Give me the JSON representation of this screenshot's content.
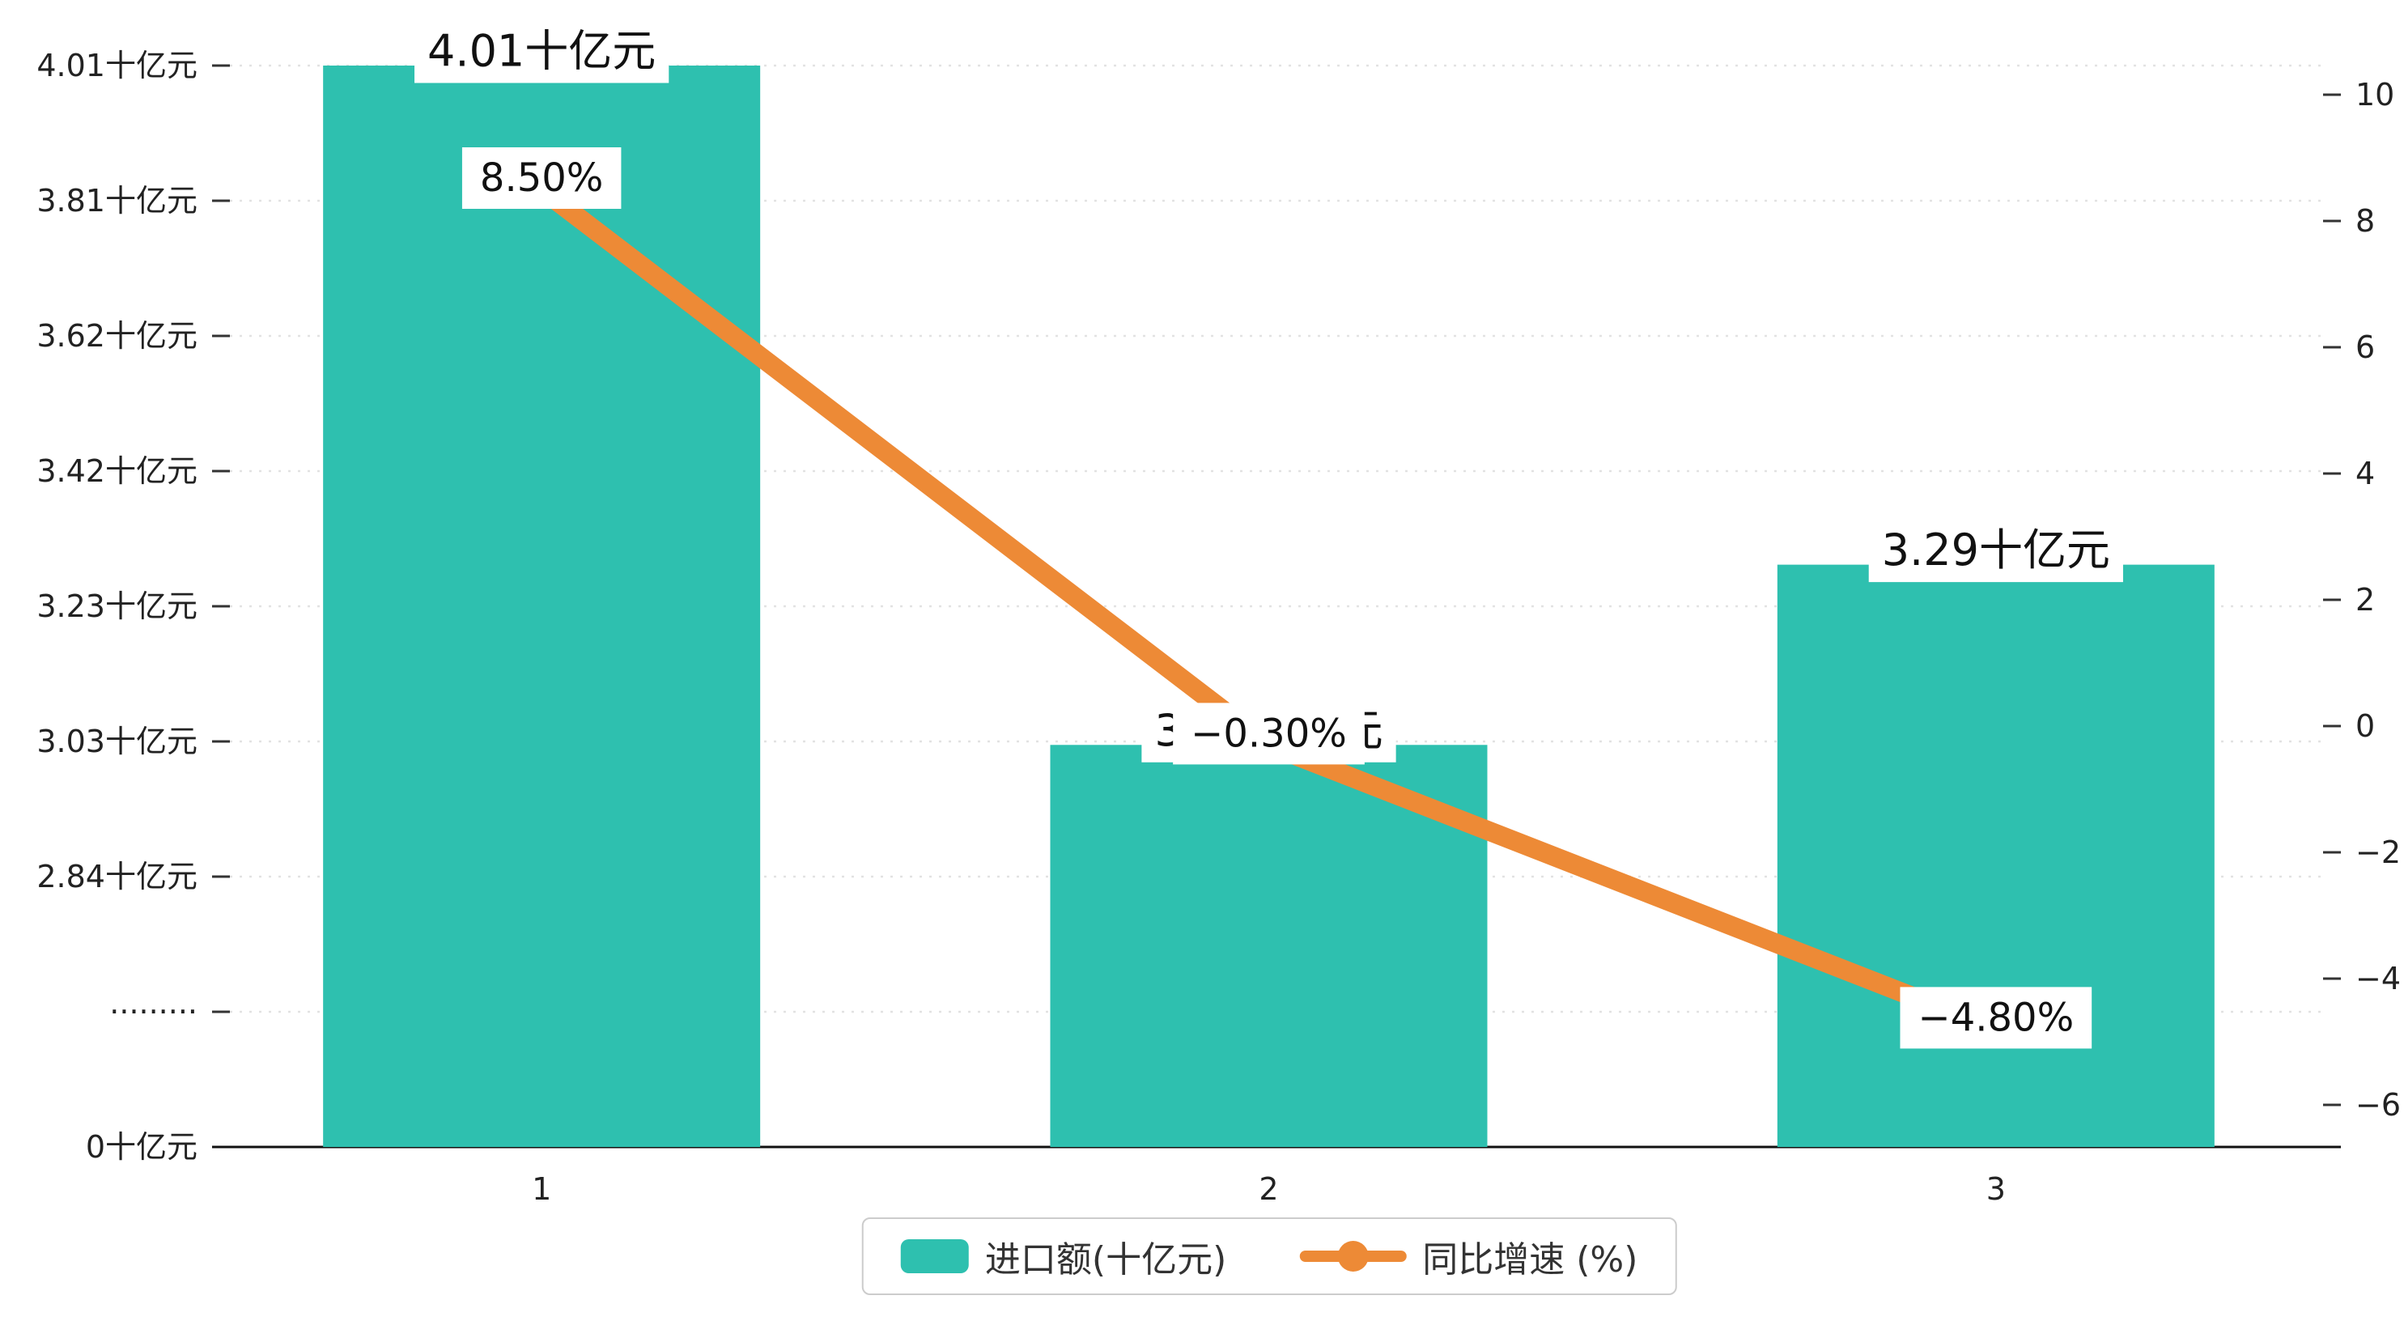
{
  "chart_data": {
    "type": "bar+line",
    "title": "",
    "categories": [
      "1",
      "2",
      "3"
    ],
    "series": [
      {
        "name": "进口额(十亿元)",
        "type": "bar",
        "color": "#2EC0AF",
        "values": [
          4.01,
          3.03,
          3.29
        ],
        "labels": [
          "4.01十亿元",
          "3.03十亿元",
          "3.29十亿元"
        ]
      },
      {
        "name": "同比增速 (%)",
        "type": "line",
        "color": "#ED8A36",
        "values": [
          8.5,
          -0.3,
          -4.8
        ],
        "labels": [
          "8.50%",
          "−0.30%",
          "−4.80%"
        ]
      }
    ],
    "left_axis": {
      "tick_labels": [
        "4.01十亿元",
        "3.81十亿元",
        "3.62十亿元",
        "3.42十亿元",
        "3.23十亿元",
        "3.03十亿元",
        "2.84十亿元",
        "·········",
        "0十亿元"
      ],
      "value_top": 4.01,
      "value_at_break": 2.84,
      "has_axis_break": true
    },
    "right_axis": {
      "tick_labels": [
        "10",
        "8",
        "6",
        "4",
        "2",
        "0",
        "−2",
        "−4",
        "−6"
      ],
      "max": 10,
      "min": -6
    },
    "grid": true,
    "gridline_style": "dotted",
    "legend_position": "bottom"
  }
}
